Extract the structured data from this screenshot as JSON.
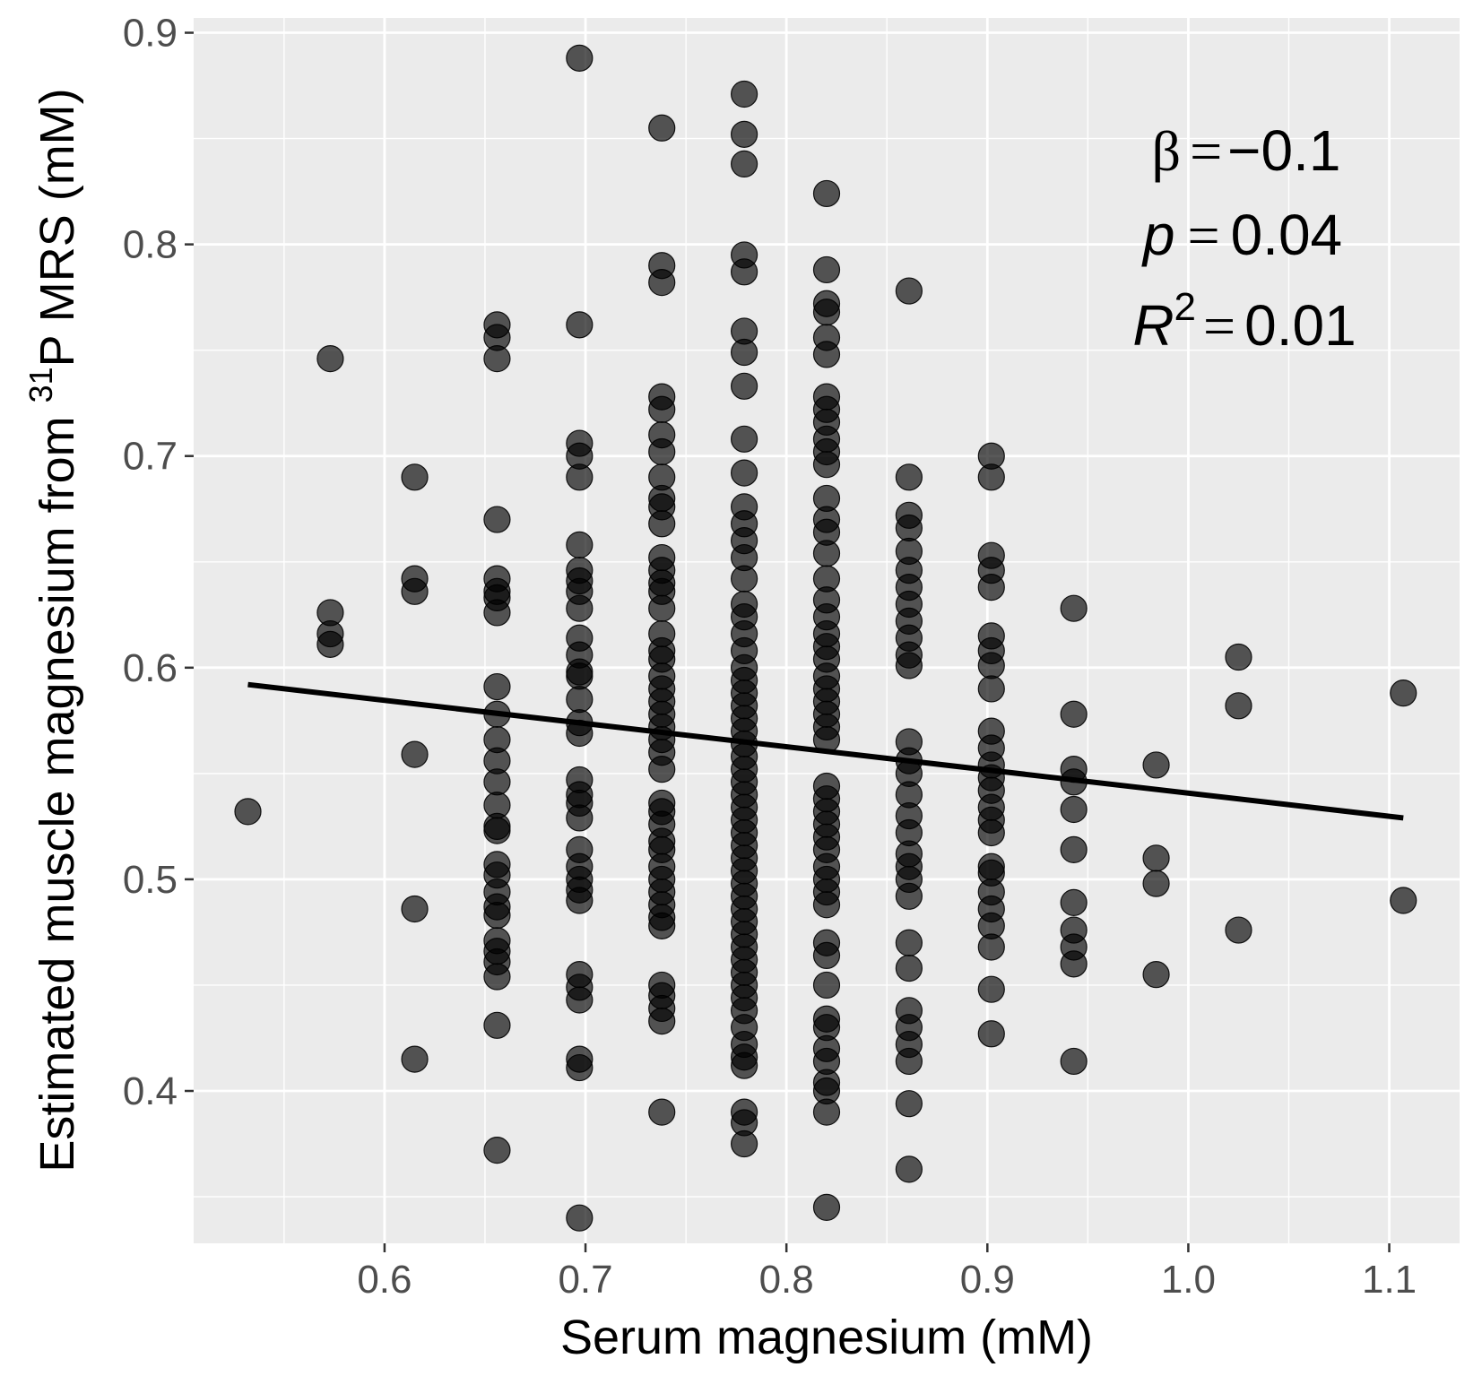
{
  "chart_data": {
    "type": "scatter",
    "xlabel": "Serum magnesium (mM)",
    "ylabel_main": "Estimated muscle magnesium from ",
    "ylabel_sup": "31",
    "ylabel_tail": "P MRS (mM)",
    "xlim": [
      0.505,
      1.135
    ],
    "ylim": [
      0.328,
      0.907
    ],
    "x_ticks": [
      0.6,
      0.7,
      0.8,
      0.9,
      1.0,
      1.1
    ],
    "x_tick_labels": [
      "0.6",
      "0.7",
      "0.8",
      "0.9",
      "1.0",
      "1.1"
    ],
    "y_ticks": [
      0.4,
      0.5,
      0.6,
      0.7,
      0.8,
      0.9
    ],
    "y_tick_labels": [
      "0.4",
      "0.5",
      "0.6",
      "0.7",
      "0.8",
      "0.9"
    ],
    "grid": true,
    "background": "#ebebeb",
    "point_color": "#000000",
    "point_opacity": 0.65,
    "line_color": "#000000",
    "annotation": {
      "beta_symbol": "β",
      "beta_value": "−0.1",
      "p_symbol": "p",
      "p_value": "0.04",
      "r_symbol": "R",
      "r_sup": "2",
      "r_value": "0.01",
      "eq": "="
    },
    "regression_line": {
      "x": [
        0.532,
        1.107
      ],
      "y": [
        0.592,
        0.529
      ]
    },
    "series": [
      {
        "x": 0.532,
        "y": [
          0.532
        ]
      },
      {
        "x": 0.573,
        "y": [
          0.746,
          0.626,
          0.616,
          0.611
        ]
      },
      {
        "x": 0.615,
        "y": [
          0.69,
          0.642,
          0.636,
          0.559,
          0.486,
          0.415
        ]
      },
      {
        "x": 0.656,
        "y": [
          0.762,
          0.756,
          0.746,
          0.67,
          0.642,
          0.636,
          0.633,
          0.626,
          0.591,
          0.578,
          0.566,
          0.556,
          0.546,
          0.535,
          0.525,
          0.523,
          0.507,
          0.502,
          0.494,
          0.487,
          0.483,
          0.471,
          0.466,
          0.461,
          0.454,
          0.431,
          0.372
        ]
      },
      {
        "x": 0.697,
        "y": [
          0.888,
          0.762,
          0.706,
          0.7,
          0.69,
          0.658,
          0.646,
          0.641,
          0.636,
          0.628,
          0.614,
          0.606,
          0.598,
          0.596,
          0.585,
          0.574,
          0.569,
          0.547,
          0.54,
          0.536,
          0.529,
          0.514,
          0.506,
          0.5,
          0.495,
          0.49,
          0.455,
          0.449,
          0.443,
          0.415,
          0.411,
          0.34
        ]
      },
      {
        "x": 0.738,
        "y": [
          0.855,
          0.79,
          0.782,
          0.728,
          0.722,
          0.71,
          0.702,
          0.69,
          0.68,
          0.676,
          0.668,
          0.652,
          0.646,
          0.64,
          0.636,
          0.628,
          0.616,
          0.608,
          0.604,
          0.596,
          0.59,
          0.584,
          0.578,
          0.572,
          0.566,
          0.56,
          0.552,
          0.536,
          0.532,
          0.526,
          0.518,
          0.514,
          0.506,
          0.5,
          0.494,
          0.488,
          0.482,
          0.478,
          0.45,
          0.445,
          0.439,
          0.433,
          0.39
        ]
      },
      {
        "x": 0.779,
        "y": [
          0.871,
          0.852,
          0.838,
          0.795,
          0.787,
          0.759,
          0.749,
          0.733,
          0.708,
          0.692,
          0.676,
          0.668,
          0.66,
          0.652,
          0.642,
          0.63,
          0.624,
          0.616,
          0.608,
          0.6,
          0.594,
          0.588,
          0.582,
          0.576,
          0.57,
          0.564,
          0.558,
          0.552,
          0.546,
          0.54,
          0.534,
          0.528,
          0.522,
          0.516,
          0.51,
          0.504,
          0.498,
          0.492,
          0.486,
          0.48,
          0.474,
          0.468,
          0.462,
          0.456,
          0.45,
          0.444,
          0.438,
          0.43,
          0.422,
          0.416,
          0.412,
          0.39,
          0.385,
          0.375
        ]
      },
      {
        "x": 0.82,
        "y": [
          0.824,
          0.788,
          0.772,
          0.768,
          0.756,
          0.748,
          0.728,
          0.722,
          0.716,
          0.708,
          0.702,
          0.696,
          0.68,
          0.67,
          0.664,
          0.654,
          0.642,
          0.632,
          0.624,
          0.616,
          0.61,
          0.604,
          0.596,
          0.59,
          0.584,
          0.578,
          0.572,
          0.566,
          0.544,
          0.538,
          0.532,
          0.526,
          0.52,
          0.514,
          0.506,
          0.5,
          0.494,
          0.488,
          0.47,
          0.464,
          0.45,
          0.434,
          0.43,
          0.42,
          0.414,
          0.404,
          0.4,
          0.39,
          0.345
        ]
      },
      {
        "x": 0.861,
        "y": [
          0.778,
          0.69,
          0.672,
          0.666,
          0.655,
          0.646,
          0.638,
          0.63,
          0.622,
          0.614,
          0.606,
          0.601,
          0.565,
          0.556,
          0.55,
          0.54,
          0.53,
          0.522,
          0.512,
          0.506,
          0.5,
          0.492,
          0.47,
          0.458,
          0.438,
          0.43,
          0.422,
          0.414,
          0.394,
          0.363
        ]
      },
      {
        "x": 0.902,
        "y": [
          0.7,
          0.69,
          0.653,
          0.646,
          0.638,
          0.615,
          0.608,
          0.601,
          0.59,
          0.57,
          0.562,
          0.554,
          0.548,
          0.542,
          0.534,
          0.528,
          0.522,
          0.506,
          0.503,
          0.494,
          0.486,
          0.478,
          0.468,
          0.448,
          0.427
        ]
      },
      {
        "x": 0.943,
        "y": [
          0.628,
          0.578,
          0.552,
          0.546,
          0.533,
          0.514,
          0.489,
          0.476,
          0.468,
          0.46,
          0.414
        ]
      },
      {
        "x": 0.984,
        "y": [
          0.554,
          0.51,
          0.498,
          0.455
        ]
      },
      {
        "x": 1.025,
        "y": [
          0.605,
          0.582,
          0.476
        ]
      },
      {
        "x": 1.107,
        "y": [
          0.588,
          0.49
        ]
      }
    ]
  }
}
